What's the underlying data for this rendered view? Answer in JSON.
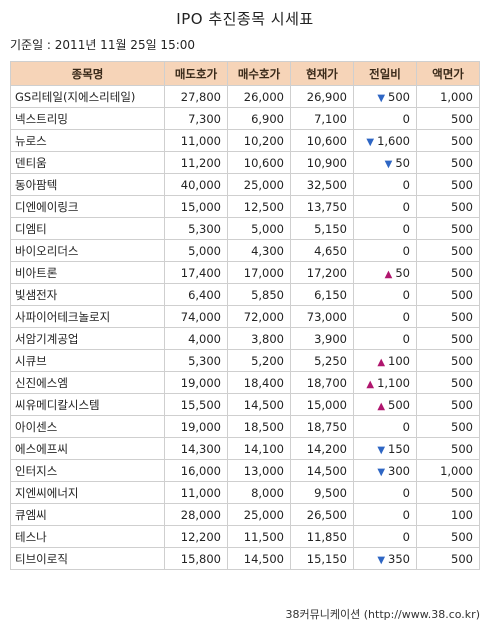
{
  "title": "IPO 추진종목 시세표",
  "base_time": "기준일 : 2011년 11월 25일 15:00",
  "columns": [
    "종목명",
    "매도호가",
    "매수호가",
    "현재가",
    "전일비",
    "액면가"
  ],
  "rows": [
    {
      "name": "GS리테일(지에스리테일)",
      "ask": "27,800",
      "bid": "26,000",
      "price": "26,900",
      "dir": "down",
      "arrow": "▼",
      "change": "500",
      "par": "1,000"
    },
    {
      "name": "넥스트리밍",
      "ask": "7,300",
      "bid": "6,900",
      "price": "7,100",
      "dir": "none",
      "arrow": "",
      "change": "0",
      "par": "500"
    },
    {
      "name": "뉴로스",
      "ask": "11,000",
      "bid": "10,200",
      "price": "10,600",
      "dir": "down",
      "arrow": "▼",
      "change": "1,600",
      "par": "500"
    },
    {
      "name": "덴티움",
      "ask": "11,200",
      "bid": "10,600",
      "price": "10,900",
      "dir": "down",
      "arrow": "▼",
      "change": "50",
      "par": "500"
    },
    {
      "name": "동아팜텍",
      "ask": "40,000",
      "bid": "25,000",
      "price": "32,500",
      "dir": "none",
      "arrow": "",
      "change": "0",
      "par": "500"
    },
    {
      "name": "디엔에이링크",
      "ask": "15,000",
      "bid": "12,500",
      "price": "13,750",
      "dir": "none",
      "arrow": "",
      "change": "0",
      "par": "500"
    },
    {
      "name": "디엠티",
      "ask": "5,300",
      "bid": "5,000",
      "price": "5,150",
      "dir": "none",
      "arrow": "",
      "change": "0",
      "par": "500"
    },
    {
      "name": "바이오리더스",
      "ask": "5,000",
      "bid": "4,300",
      "price": "4,650",
      "dir": "none",
      "arrow": "",
      "change": "0",
      "par": "500"
    },
    {
      "name": "비아트론",
      "ask": "17,400",
      "bid": "17,000",
      "price": "17,200",
      "dir": "up",
      "arrow": "▲",
      "change": "50",
      "par": "500"
    },
    {
      "name": "빛샘전자",
      "ask": "6,400",
      "bid": "5,850",
      "price": "6,150",
      "dir": "none",
      "arrow": "",
      "change": "0",
      "par": "500"
    },
    {
      "name": "사파이어테크놀로지",
      "ask": "74,000",
      "bid": "72,000",
      "price": "73,000",
      "dir": "none",
      "arrow": "",
      "change": "0",
      "par": "500"
    },
    {
      "name": "서암기계공업",
      "ask": "4,000",
      "bid": "3,800",
      "price": "3,900",
      "dir": "none",
      "arrow": "",
      "change": "0",
      "par": "500"
    },
    {
      "name": "시큐브",
      "ask": "5,300",
      "bid": "5,200",
      "price": "5,250",
      "dir": "up",
      "arrow": "▲",
      "change": "100",
      "par": "500"
    },
    {
      "name": "신진에스엠",
      "ask": "19,000",
      "bid": "18,400",
      "price": "18,700",
      "dir": "up",
      "arrow": "▲",
      "change": "1,100",
      "par": "500"
    },
    {
      "name": "씨유메디칼시스템",
      "ask": "15,500",
      "bid": "14,500",
      "price": "15,000",
      "dir": "up",
      "arrow": "▲",
      "change": "500",
      "par": "500"
    },
    {
      "name": "아이센스",
      "ask": "19,000",
      "bid": "18,500",
      "price": "18,750",
      "dir": "none",
      "arrow": "",
      "change": "0",
      "par": "500"
    },
    {
      "name": "에스에프씨",
      "ask": "14,300",
      "bid": "14,100",
      "price": "14,200",
      "dir": "down",
      "arrow": "▼",
      "change": "150",
      "par": "500"
    },
    {
      "name": "인터지스",
      "ask": "16,000",
      "bid": "13,000",
      "price": "14,500",
      "dir": "down",
      "arrow": "▼",
      "change": "300",
      "par": "1,000"
    },
    {
      "name": "지엔씨에너지",
      "ask": "11,000",
      "bid": "8,000",
      "price": "9,500",
      "dir": "none",
      "arrow": "",
      "change": "0",
      "par": "500"
    },
    {
      "name": "큐엠씨",
      "ask": "28,000",
      "bid": "25,000",
      "price": "26,500",
      "dir": "none",
      "arrow": "",
      "change": "0",
      "par": "100"
    },
    {
      "name": "테스나",
      "ask": "12,200",
      "bid": "11,500",
      "price": "11,850",
      "dir": "none",
      "arrow": "",
      "change": "0",
      "par": "500"
    },
    {
      "name": "티브이로직",
      "ask": "15,800",
      "bid": "14,500",
      "price": "15,150",
      "dir": "down",
      "arrow": "▼",
      "change": "350",
      "par": "500"
    }
  ],
  "colors": {
    "header_bg": "#f6d4b8",
    "down": "#2e66c4",
    "up": "#b0166e",
    "grid": "#cfcfcf"
  },
  "source": "38커뮤니케이션 (http://www.38.co.kr)"
}
